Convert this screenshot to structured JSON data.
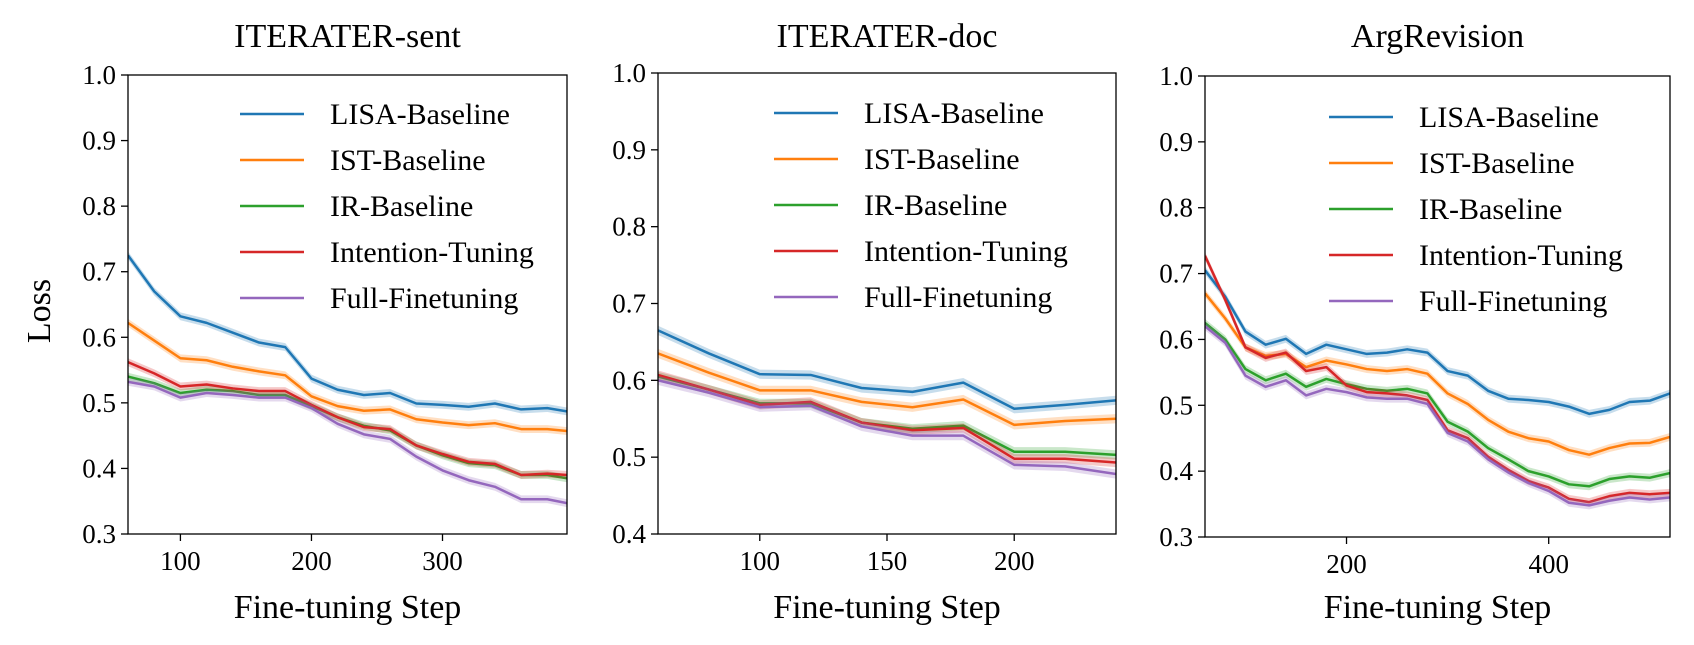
{
  "figure": {
    "ylabel": "Loss",
    "legend_loc": "upper-right",
    "series_names": [
      "LISA-Baseline",
      "IST-Baseline",
      "IR-Baseline",
      "Intention-Tuning",
      "Full-Finetuning"
    ],
    "series_colors": [
      "#1f77b4",
      "#ff7f0e",
      "#2ca02c",
      "#d62728",
      "#9467bd"
    ]
  },
  "chart_data": [
    {
      "type": "line",
      "title": "ITERATER-sent",
      "xlabel": "Fine-tuning Step",
      "ylabel": "Loss",
      "xlim": [
        60,
        395
      ],
      "ylim": [
        0.3,
        1.0
      ],
      "xticks": [
        100,
        200,
        300
      ],
      "yticks": [
        "0.3",
        "0.4",
        "0.5",
        "0.6",
        "0.7",
        "0.8",
        "0.9",
        "1.0"
      ],
      "x": [
        60,
        80,
        100,
        120,
        140,
        160,
        180,
        200,
        220,
        240,
        260,
        280,
        300,
        320,
        340,
        360,
        380,
        395
      ],
      "series": [
        {
          "name": "LISA-Baseline",
          "values": [
            0.725,
            0.67,
            0.632,
            0.622,
            0.607,
            0.592,
            0.585,
            0.537,
            0.52,
            0.512,
            0.515,
            0.499,
            0.497,
            0.494,
            0.499,
            0.49,
            0.492,
            0.487
          ]
        },
        {
          "name": "IST-Baseline",
          "values": [
            0.622,
            0.595,
            0.568,
            0.565,
            0.555,
            0.548,
            0.542,
            0.51,
            0.495,
            0.488,
            0.49,
            0.475,
            0.47,
            0.466,
            0.469,
            0.46,
            0.46,
            0.457
          ]
        },
        {
          "name": "IR-Baseline",
          "values": [
            0.54,
            0.53,
            0.515,
            0.52,
            0.518,
            0.512,
            0.512,
            0.495,
            0.478,
            0.465,
            0.458,
            0.435,
            0.42,
            0.408,
            0.405,
            0.39,
            0.39,
            0.385
          ]
        },
        {
          "name": "Intention-Tuning",
          "values": [
            0.562,
            0.545,
            0.525,
            0.528,
            0.522,
            0.518,
            0.518,
            0.497,
            0.478,
            0.463,
            0.46,
            0.435,
            0.422,
            0.41,
            0.407,
            0.39,
            0.392,
            0.39
          ]
        },
        {
          "name": "Full-Finetuning",
          "values": [
            0.532,
            0.525,
            0.508,
            0.515,
            0.512,
            0.508,
            0.508,
            0.492,
            0.468,
            0.452,
            0.445,
            0.418,
            0.397,
            0.382,
            0.372,
            0.353,
            0.353,
            0.347
          ]
        }
      ]
    },
    {
      "type": "line",
      "title": "ITERATER-doc",
      "xlabel": "Fine-tuning Step",
      "ylabel": "",
      "xlim": [
        60,
        240
      ],
      "ylim": [
        0.4,
        1.0
      ],
      "xticks": [
        100,
        150,
        200
      ],
      "yticks": [
        "0.4",
        "0.5",
        "0.6",
        "0.7",
        "0.8",
        "0.9",
        "1.0"
      ],
      "x": [
        60,
        80,
        100,
        120,
        140,
        160,
        180,
        200,
        220,
        240
      ],
      "series": [
        {
          "name": "LISA-Baseline",
          "values": [
            0.665,
            0.635,
            0.608,
            0.607,
            0.59,
            0.585,
            0.597,
            0.563,
            0.568,
            0.574
          ]
        },
        {
          "name": "IST-Baseline",
          "values": [
            0.635,
            0.61,
            0.587,
            0.587,
            0.572,
            0.565,
            0.575,
            0.542,
            0.547,
            0.55
          ]
        },
        {
          "name": "IR-Baseline",
          "values": [
            0.605,
            0.588,
            0.57,
            0.57,
            0.545,
            0.537,
            0.541,
            0.507,
            0.507,
            0.503
          ]
        },
        {
          "name": "Intention-Tuning",
          "values": [
            0.607,
            0.588,
            0.568,
            0.572,
            0.545,
            0.535,
            0.538,
            0.498,
            0.498,
            0.493
          ]
        },
        {
          "name": "Full-Finetuning",
          "values": [
            0.6,
            0.584,
            0.565,
            0.567,
            0.54,
            0.528,
            0.528,
            0.49,
            0.488,
            0.478
          ]
        }
      ]
    },
    {
      "type": "line",
      "title": "ArgRevision",
      "xlabel": "Fine-tuning Step",
      "ylabel": "",
      "xlim": [
        60,
        520
      ],
      "ylim": [
        0.3,
        1.0
      ],
      "xticks": [
        200,
        400
      ],
      "yticks": [
        "0.3",
        "0.4",
        "0.5",
        "0.6",
        "0.7",
        "0.8",
        "0.9",
        "1.0"
      ],
      "x": [
        60,
        80,
        100,
        120,
        140,
        160,
        180,
        200,
        220,
        240,
        260,
        280,
        300,
        320,
        340,
        360,
        380,
        400,
        420,
        440,
        460,
        480,
        500,
        520
      ],
      "series": [
        {
          "name": "LISA-Baseline",
          "values": [
            0.705,
            0.665,
            0.612,
            0.592,
            0.601,
            0.578,
            0.592,
            0.585,
            0.578,
            0.58,
            0.585,
            0.58,
            0.552,
            0.545,
            0.522,
            0.51,
            0.508,
            0.505,
            0.498,
            0.487,
            0.493,
            0.505,
            0.507,
            0.518
          ]
        },
        {
          "name": "IST-Baseline",
          "values": [
            0.67,
            0.632,
            0.588,
            0.575,
            0.578,
            0.558,
            0.568,
            0.562,
            0.555,
            0.552,
            0.555,
            0.548,
            0.518,
            0.502,
            0.478,
            0.46,
            0.45,
            0.445,
            0.432,
            0.425,
            0.435,
            0.442,
            0.443,
            0.452
          ]
        },
        {
          "name": "IR-Baseline",
          "values": [
            0.625,
            0.6,
            0.555,
            0.538,
            0.548,
            0.528,
            0.54,
            0.532,
            0.525,
            0.522,
            0.525,
            0.518,
            0.475,
            0.46,
            0.435,
            0.418,
            0.4,
            0.392,
            0.38,
            0.377,
            0.388,
            0.392,
            0.39,
            0.397
          ]
        },
        {
          "name": "Intention-Tuning",
          "values": [
            0.727,
            0.66,
            0.588,
            0.572,
            0.58,
            0.552,
            0.558,
            0.53,
            0.52,
            0.518,
            0.515,
            0.508,
            0.462,
            0.45,
            0.422,
            0.402,
            0.385,
            0.375,
            0.358,
            0.353,
            0.362,
            0.367,
            0.365,
            0.367
          ]
        },
        {
          "name": "Full-Finetuning",
          "values": [
            0.62,
            0.595,
            0.545,
            0.528,
            0.538,
            0.515,
            0.525,
            0.52,
            0.512,
            0.51,
            0.51,
            0.502,
            0.458,
            0.445,
            0.418,
            0.398,
            0.382,
            0.37,
            0.352,
            0.348,
            0.355,
            0.36,
            0.357,
            0.36
          ]
        }
      ]
    }
  ]
}
